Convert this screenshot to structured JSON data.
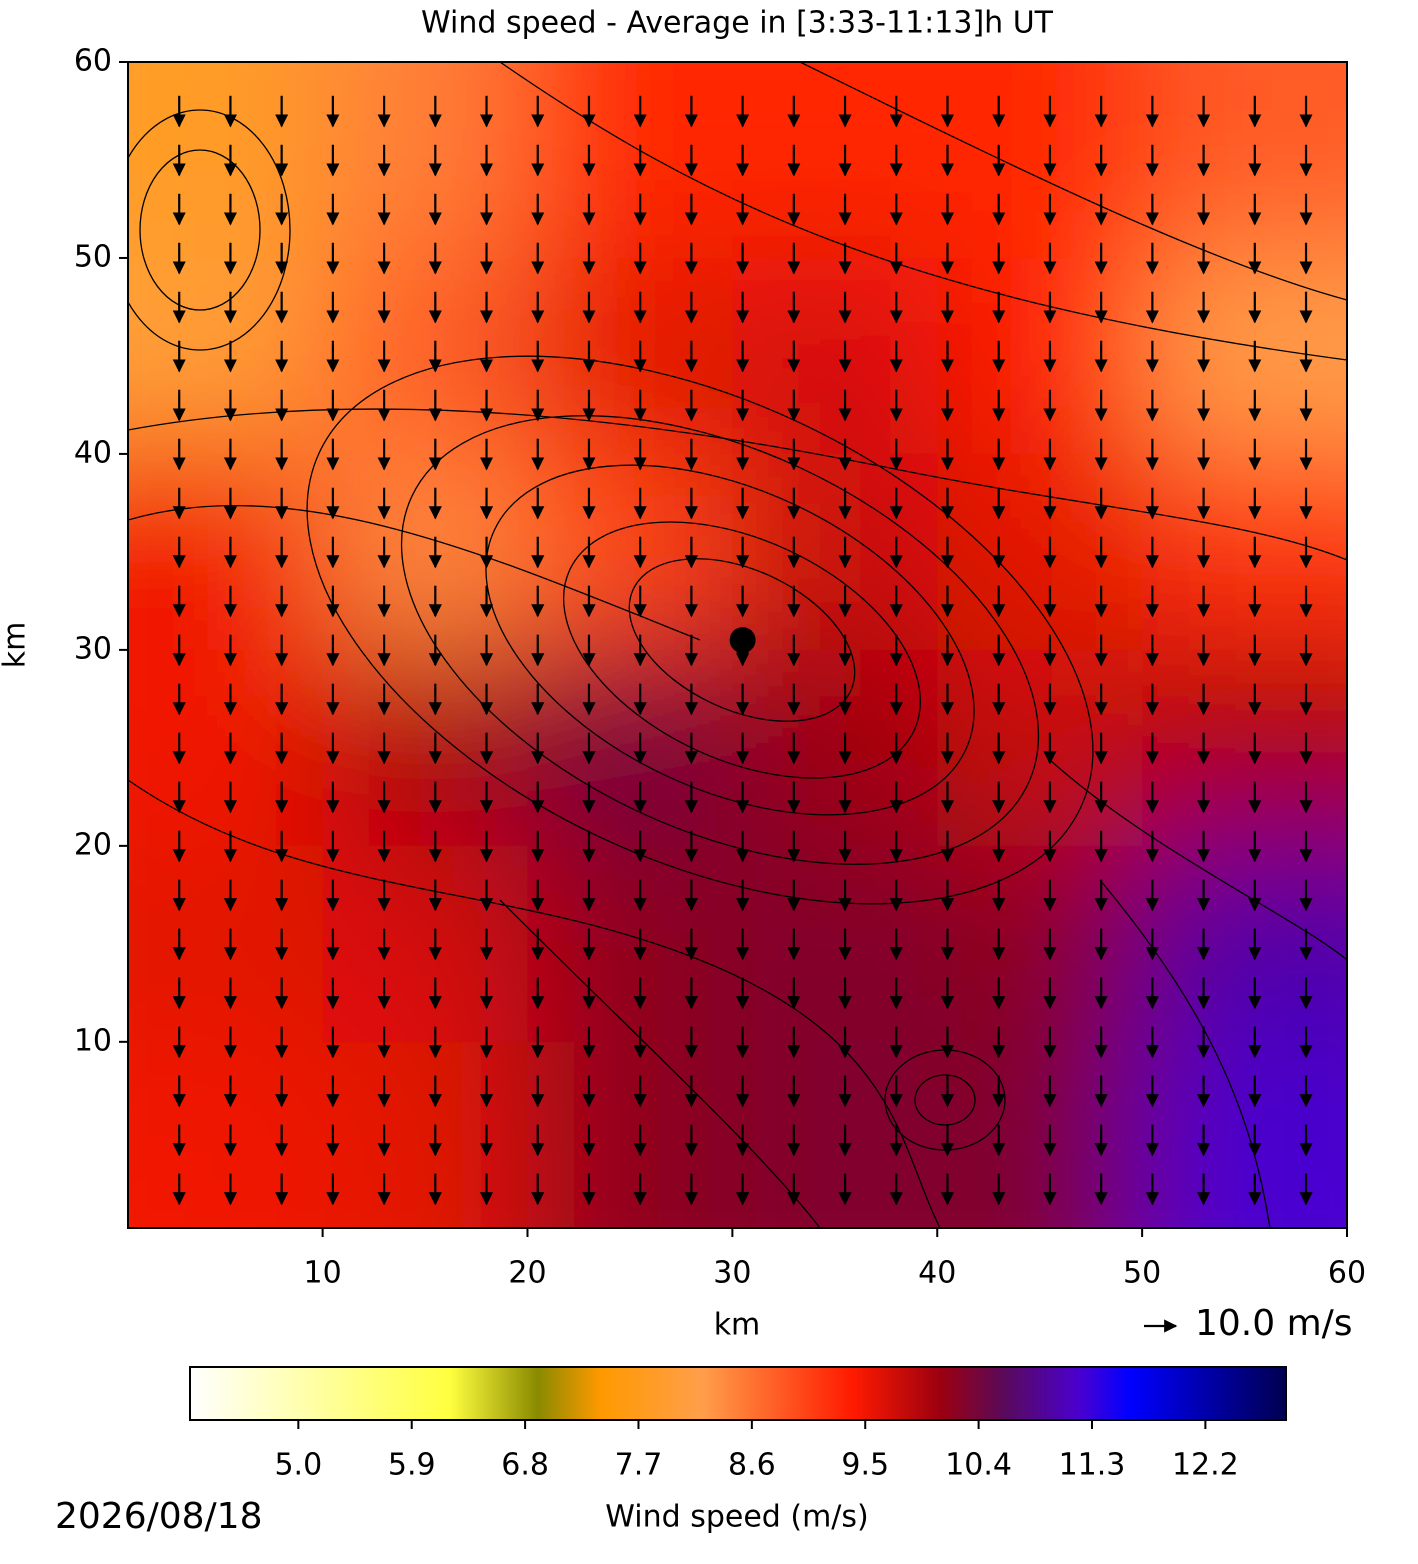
{
  "chart_data": {
    "type": "heatmap",
    "title": "Wind speed - Average in [3:33-11:13]h UT",
    "x_label": "km",
    "y_label": "km",
    "xlim": [
      0.5,
      60
    ],
    "ylim": [
      0.5,
      60
    ],
    "xticks": [
      10,
      20,
      30,
      40,
      50,
      60
    ],
    "yticks": [
      10,
      20,
      30,
      40,
      50,
      60
    ],
    "heatmap": {
      "x": [
        5,
        15,
        25,
        35,
        45,
        55
      ],
      "y": [
        55,
        45,
        35,
        25,
        15,
        5
      ],
      "values": [
        [
          7.8,
          8.5,
          9.3,
          9.3,
          9.3,
          8.8
        ],
        [
          8.0,
          8.8,
          9.6,
          9.7,
          9.4,
          8.2
        ],
        [
          9.5,
          8.4,
          9.0,
          9.8,
          9.6,
          9.2
        ],
        [
          9.5,
          10.0,
          10.4,
          10.1,
          9.8,
          10.0
        ],
        [
          9.6,
          9.7,
          10.2,
          10.3,
          10.2,
          11.0
        ],
        [
          9.5,
          9.6,
          10.2,
          10.3,
          10.3,
          11.2
        ]
      ]
    },
    "quiver": {
      "x": [
        3,
        5.5,
        8,
        10.5,
        13,
        15.5,
        18,
        20.5,
        23,
        25.5,
        28,
        30.5,
        33,
        35.5,
        38,
        40.5,
        43,
        45.5,
        48,
        50.5,
        53,
        55.5,
        58
      ],
      "y": [
        57.5,
        55,
        52.5,
        50,
        47.5,
        45,
        42.5,
        40,
        37.5,
        35,
        32.5,
        30,
        27.5,
        25,
        22.5,
        20,
        17.5,
        15,
        12.5,
        10,
        7.5,
        5,
        2.5
      ],
      "u": 0,
      "v": -9.5,
      "key": {
        "value": 10.0,
        "label": "10.0 m/s"
      }
    },
    "marker": {
      "x": 30.5,
      "y": 30.5
    },
    "colorbar": {
      "label": "Wind speed (m/s)",
      "lim": [
        4.14,
        12.84
      ],
      "ticks": [
        {
          "value": 5.0,
          "label": "5.0"
        },
        {
          "value": 5.9,
          "label": "5.9"
        },
        {
          "value": 6.8,
          "label": "6.8"
        },
        {
          "value": 7.7,
          "label": "7.7"
        },
        {
          "value": 8.6,
          "label": "8.6"
        },
        {
          "value": 9.5,
          "label": "9.5"
        },
        {
          "value": 10.4,
          "label": "10.4"
        },
        {
          "value": 11.3,
          "label": "11.3"
        },
        {
          "value": 12.2,
          "label": "12.2"
        }
      ],
      "colorscale": [
        [
          4.14,
          "#ffffff"
        ],
        [
          6.2,
          "#ffff40"
        ],
        [
          6.9,
          "#8a8a00"
        ],
        [
          7.4,
          "#ff9900"
        ],
        [
          8.2,
          "#ff9f4a"
        ],
        [
          9.4,
          "#ff1a00"
        ],
        [
          10.1,
          "#9b0010"
        ],
        [
          10.6,
          "#5a0a5a"
        ],
        [
          11.2,
          "#4a00d0"
        ],
        [
          11.6,
          "#0000ff"
        ],
        [
          12.84,
          "#000050"
        ]
      ]
    },
    "date": "2026/08/18"
  }
}
